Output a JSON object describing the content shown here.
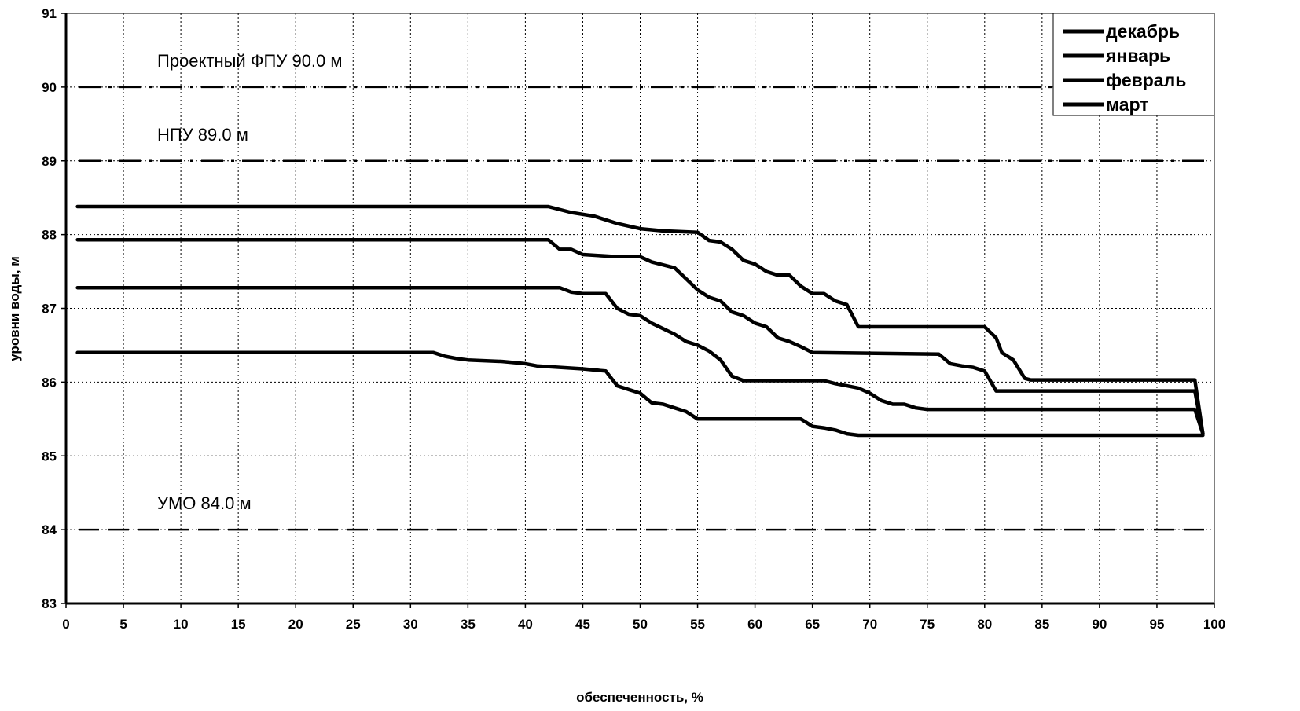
{
  "chart_data": {
    "type": "line",
    "xlabel": "обеспеченность, %",
    "ylabel": "уровни воды, м",
    "xlim": [
      0,
      100
    ],
    "ylim": [
      83,
      91
    ],
    "x_ticks": [
      "0",
      "5",
      "10",
      "15",
      "20",
      "25",
      "30",
      "35",
      "40",
      "45",
      "50",
      "55",
      "60",
      "65",
      "70",
      "75",
      "80",
      "85",
      "90",
      "95",
      "100"
    ],
    "y_ticks": [
      "83",
      "84",
      "85",
      "86",
      "87",
      "88",
      "89",
      "90",
      "91"
    ],
    "grid": true,
    "legend_position": "top-right",
    "reference_lines": [
      {
        "label": "Проектный ФПУ 90.0 м",
        "y": 90.0,
        "style": "dash-dot"
      },
      {
        "label": "НПУ 89.0 м",
        "y": 89.0,
        "style": "dash-dot"
      },
      {
        "label": "УМО 84.0 м",
        "y": 84.0,
        "style": "dash"
      }
    ],
    "series": [
      {
        "name": "декабрь",
        "points": [
          [
            1,
            88.38
          ],
          [
            42,
            88.38
          ],
          [
            44,
            88.3
          ],
          [
            46,
            88.25
          ],
          [
            48,
            88.15
          ],
          [
            50,
            88.08
          ],
          [
            52,
            88.05
          ],
          [
            55,
            88.03
          ],
          [
            56,
            87.92
          ],
          [
            57,
            87.9
          ],
          [
            58,
            87.8
          ],
          [
            59,
            87.65
          ],
          [
            60,
            87.6
          ],
          [
            61,
            87.5
          ],
          [
            62,
            87.45
          ],
          [
            63,
            87.45
          ],
          [
            64,
            87.3
          ],
          [
            65,
            87.2
          ],
          [
            66,
            87.2
          ],
          [
            67,
            87.1
          ],
          [
            68,
            87.05
          ],
          [
            69,
            86.75
          ],
          [
            80,
            86.75
          ],
          [
            81,
            86.6
          ],
          [
            81.5,
            86.4
          ],
          [
            82.5,
            86.3
          ],
          [
            83.5,
            86.05
          ],
          [
            84,
            86.03
          ],
          [
            98.3,
            86.03
          ],
          [
            99,
            85.3
          ]
        ]
      },
      {
        "name": "январь",
        "points": [
          [
            1,
            87.93
          ],
          [
            42,
            87.93
          ],
          [
            43,
            87.8
          ],
          [
            44,
            87.8
          ],
          [
            45,
            87.73
          ],
          [
            48,
            87.7
          ],
          [
            50,
            87.7
          ],
          [
            51,
            87.63
          ],
          [
            53,
            87.55
          ],
          [
            54,
            87.4
          ],
          [
            55,
            87.25
          ],
          [
            56,
            87.15
          ],
          [
            57,
            87.1
          ],
          [
            58,
            86.95
          ],
          [
            59,
            86.9
          ],
          [
            60,
            86.8
          ],
          [
            61,
            86.75
          ],
          [
            62,
            86.6
          ],
          [
            63,
            86.55
          ],
          [
            64,
            86.48
          ],
          [
            65,
            86.4
          ],
          [
            76,
            86.38
          ],
          [
            77,
            86.25
          ],
          [
            78,
            86.22
          ],
          [
            79,
            86.2
          ],
          [
            80,
            86.15
          ],
          [
            81,
            85.88
          ],
          [
            98.3,
            85.88
          ],
          [
            99,
            85.3
          ]
        ]
      },
      {
        "name": "февраль",
        "points": [
          [
            1,
            87.28
          ],
          [
            43,
            87.28
          ],
          [
            44,
            87.22
          ],
          [
            45,
            87.2
          ],
          [
            47,
            87.2
          ],
          [
            48,
            87.0
          ],
          [
            49,
            86.92
          ],
          [
            50,
            86.9
          ],
          [
            51,
            86.8
          ],
          [
            53,
            86.65
          ],
          [
            54,
            86.55
          ],
          [
            55,
            86.5
          ],
          [
            56,
            86.42
          ],
          [
            57,
            86.3
          ],
          [
            58,
            86.08
          ],
          [
            59,
            86.02
          ],
          [
            66,
            86.02
          ],
          [
            67,
            85.98
          ],
          [
            68,
            85.95
          ],
          [
            69,
            85.92
          ],
          [
            70,
            85.85
          ],
          [
            71,
            85.75
          ],
          [
            72,
            85.7
          ],
          [
            73,
            85.7
          ],
          [
            74,
            85.65
          ],
          [
            75,
            85.63
          ],
          [
            98.3,
            85.63
          ],
          [
            99,
            85.3
          ]
        ]
      },
      {
        "name": "март",
        "points": [
          [
            1,
            86.4
          ],
          [
            32,
            86.4
          ],
          [
            33,
            86.35
          ],
          [
            34,
            86.32
          ],
          [
            35,
            86.3
          ],
          [
            38,
            86.28
          ],
          [
            40,
            86.25
          ],
          [
            41,
            86.22
          ],
          [
            43,
            86.2
          ],
          [
            45,
            86.18
          ],
          [
            47,
            86.15
          ],
          [
            48,
            85.95
          ],
          [
            49,
            85.9
          ],
          [
            50,
            85.85
          ],
          [
            51,
            85.72
          ],
          [
            52,
            85.7
          ],
          [
            53,
            85.65
          ],
          [
            54,
            85.6
          ],
          [
            55,
            85.5
          ],
          [
            56,
            85.5
          ],
          [
            64,
            85.5
          ],
          [
            65,
            85.4
          ],
          [
            66,
            85.38
          ],
          [
            67,
            85.35
          ],
          [
            68,
            85.3
          ],
          [
            69,
            85.28
          ],
          [
            99,
            85.28
          ]
        ]
      }
    ]
  }
}
